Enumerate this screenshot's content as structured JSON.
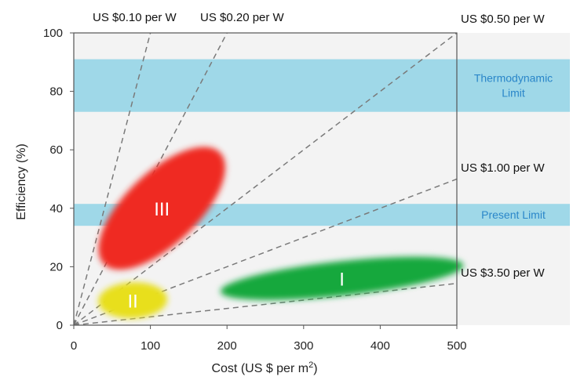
{
  "chart_data": {
    "type": "scatter",
    "xlabel": "Cost (US $ per m",
    "xlabel_sup": "2",
    "xlabel_close": ")",
    "ylabel": "Efficiency (%)",
    "xlim": [
      0,
      500
    ],
    "ylim": [
      0,
      100
    ],
    "x_ticks": [
      0,
      100,
      200,
      300,
      400,
      500
    ],
    "y_ticks": [
      0,
      20,
      40,
      60,
      80,
      100
    ],
    "bands": [
      {
        "label_lines": [
          "Thermodynamic",
          "Limit"
        ],
        "y_low": 73,
        "y_high": 91,
        "color": "#9fd8e8"
      },
      {
        "label_lines": [
          "Present Limit"
        ],
        "y_low": 34,
        "y_high": 41.5,
        "color": "#9fd8e8"
      }
    ],
    "cost_lines": [
      {
        "label": "US $0.10 per W",
        "usd_per_w": 0.1
      },
      {
        "label": "US $0.20 per W",
        "usd_per_w": 0.2
      },
      {
        "label": "US $0.50 per W",
        "usd_per_w": 0.5
      },
      {
        "label": "US $1.00 per W",
        "usd_per_w": 1.0
      },
      {
        "label": "US $3.50 per W",
        "usd_per_w": 3.5
      }
    ],
    "regions": [
      {
        "label": "I",
        "cx": 350,
        "cy": 16,
        "x_start": 175,
        "y_start": 11.5,
        "x_end": 492,
        "y_end": 20.5,
        "minor_px": 44,
        "color": "#12a83d"
      },
      {
        "label": "II",
        "cx": 77,
        "cy": 8.5,
        "x_start": 32,
        "y_start": 8,
        "x_end": 122,
        "y_end": 9,
        "minor_px": 46,
        "color": "#e8df1a"
      },
      {
        "label": "III",
        "cx": 115,
        "cy": 40,
        "x_start": 48,
        "y_start": 23,
        "x_end": 200,
        "y_end": 61,
        "minor_px": 92,
        "color": "#ef2a22"
      }
    ],
    "grid": false,
    "legend": "none"
  }
}
